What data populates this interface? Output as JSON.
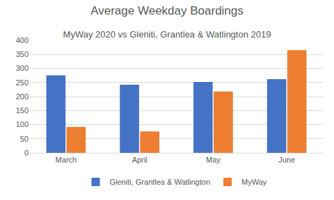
{
  "chart_data": {
    "type": "bar",
    "title": "Average Weekday Boardings",
    "subtitle": "MyWay 2020 vs Gleniti, Grantlea & Watlington 2019",
    "categories": [
      "March",
      "April",
      "May",
      "June"
    ],
    "series": [
      {
        "name": "Gleniti, Grantlea & Watlington",
        "color": "#4472c4",
        "values": [
          275,
          242,
          252,
          262
        ]
      },
      {
        "name": "MyWay",
        "color": "#ed7d31",
        "values": [
          92,
          76,
          218,
          365
        ]
      }
    ],
    "ylim": [
      0,
      400
    ],
    "yticks": [
      0,
      50,
      100,
      150,
      200,
      250,
      300,
      350,
      400
    ],
    "grid": true,
    "legend": "bottom"
  }
}
